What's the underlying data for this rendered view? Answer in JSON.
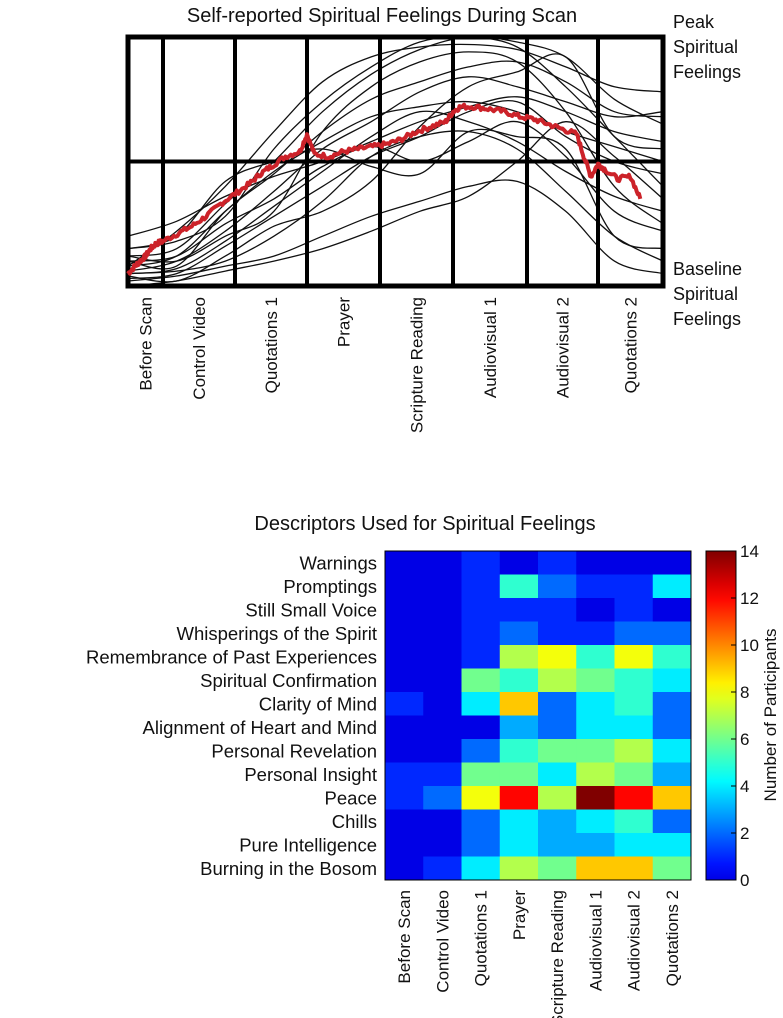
{
  "chart_data": [
    {
      "type": "line",
      "title": "Self-reported Spiritual Feelings During Scan",
      "categories": [
        "Before Scan",
        "Control Video",
        "Quotations 1",
        "Prayer",
        "Scripture Reading",
        "Audiovisual 1",
        "Audiovisual 2",
        "Quotations 2"
      ],
      "y_labels": {
        "top": [
          "Peak",
          "Spiritual",
          "Feelings"
        ],
        "bottom": [
          "Baseline",
          "Spiritual",
          "Feelings"
        ]
      },
      "ylim": [
        0,
        1
      ],
      "grid": true,
      "colors": {
        "mean": "#cc2229",
        "individual": "#111111"
      },
      "mean_series": {
        "x": [
          0,
          0.2,
          0.35,
          0.5,
          0.65,
          0.8,
          1.0,
          1.2,
          1.4,
          1.6,
          1.8,
          2.0,
          2.2,
          2.35,
          2.5,
          2.7,
          2.9,
          3.0,
          3.1,
          3.3,
          3.5,
          3.7,
          3.9,
          4.1,
          4.3,
          4.5,
          4.7,
          4.9,
          5.0,
          5.1,
          5.3,
          5.5,
          5.7,
          5.9,
          6.1,
          6.3,
          6.5,
          6.7,
          6.8,
          6.9,
          7.0,
          7.1,
          7.3,
          7.5,
          7.65
        ],
        "values": [
          0.05,
          0.08,
          0.1,
          0.12,
          0.15,
          0.17,
          0.18,
          0.21,
          0.24,
          0.28,
          0.33,
          0.37,
          0.41,
          0.45,
          0.48,
          0.52,
          0.54,
          0.61,
          0.53,
          0.52,
          0.54,
          0.55,
          0.56,
          0.57,
          0.59,
          0.62,
          0.64,
          0.66,
          0.7,
          0.72,
          0.72,
          0.71,
          0.7,
          0.68,
          0.67,
          0.65,
          0.63,
          0.61,
          0.52,
          0.44,
          0.49,
          0.47,
          0.43,
          0.44,
          0.35
        ]
      },
      "individual_series": [
        [
          0.15,
          0.2,
          0.42,
          0.5,
          0.55,
          0.48,
          0.45,
          0.62,
          0.6,
          0.55,
          0.2,
          0.15
        ],
        [
          0.1,
          0.08,
          0.3,
          0.45,
          0.62,
          0.75,
          0.82,
          0.88,
          0.9,
          0.82,
          0.7,
          0.68
        ],
        [
          0.05,
          0.06,
          0.1,
          0.2,
          0.34,
          0.52,
          0.6,
          0.62,
          0.55,
          0.38,
          0.2,
          0.1
        ],
        [
          0.12,
          0.15,
          0.33,
          0.5,
          0.7,
          0.85,
          0.95,
          1.0,
          0.98,
          0.92,
          0.75,
          0.65
        ],
        [
          0.08,
          0.22,
          0.4,
          0.62,
          0.82,
          0.92,
          0.96,
          0.97,
          0.95,
          0.88,
          0.8,
          0.78
        ],
        [
          0.02,
          0.04,
          0.08,
          0.12,
          0.2,
          0.28,
          0.34,
          0.4,
          0.42,
          0.3,
          0.1,
          0.05
        ],
        [
          0.06,
          0.1,
          0.22,
          0.38,
          0.55,
          0.66,
          0.78,
          0.84,
          0.8,
          0.74,
          0.68,
          0.7
        ],
        [
          0.2,
          0.26,
          0.36,
          0.44,
          0.5,
          0.58,
          0.66,
          0.72,
          0.76,
          0.7,
          0.62,
          0.58
        ],
        [
          0.03,
          0.05,
          0.16,
          0.28,
          0.4,
          0.52,
          0.6,
          0.7,
          0.74,
          0.6,
          0.5,
          0.45
        ],
        [
          0.1,
          0.12,
          0.25,
          0.35,
          0.48,
          0.56,
          0.5,
          0.58,
          0.66,
          0.52,
          0.3,
          0.22
        ],
        [
          0.04,
          0.02,
          0.12,
          0.24,
          0.3,
          0.42,
          0.64,
          0.8,
          0.86,
          0.92,
          0.6,
          0.55
        ],
        [
          0.15,
          0.18,
          0.28,
          0.55,
          0.74,
          0.88,
          0.98,
          1.0,
          0.96,
          0.8,
          0.6,
          0.4
        ],
        [
          0.0,
          0.02,
          0.06,
          0.1,
          0.15,
          0.22,
          0.3,
          0.36,
          0.5,
          0.66,
          0.52,
          0.35
        ],
        [
          0.08,
          0.12,
          0.3,
          0.46,
          0.58,
          0.68,
          0.72,
          0.74,
          0.7,
          0.62,
          0.56,
          0.5
        ],
        [
          0.05,
          0.07,
          0.18,
          0.32,
          0.46,
          0.6,
          0.7,
          0.66,
          0.58,
          0.46,
          0.36,
          0.3
        ],
        [
          0.12,
          0.1,
          0.2,
          0.3,
          0.62,
          0.8,
          0.9,
          0.94,
          0.9,
          0.7,
          0.4,
          0.25
        ]
      ]
    },
    {
      "type": "heatmap",
      "title": "Descriptors Used for Spiritual Feelings",
      "rows": [
        "Warnings",
        "Promptings",
        "Still Small Voice",
        "Whisperings of the Spirit",
        "Remembrance of Past Experiences",
        "Spiritual Confirmation",
        "Clarity of Mind",
        "Alignment of Heart and Mind",
        "Personal Revelation",
        "Personal Insight",
        "Peace",
        "Chills",
        "Pure Intelligence",
        "Burning in the Bosom"
      ],
      "columns": [
        "Before Scan",
        "Control Video",
        "Quotations 1",
        "Prayer",
        "Scripture Reading",
        "Audiovisual 1",
        "Audiovisual 2",
        "Quotations 2"
      ],
      "values": [
        [
          0,
          0,
          1,
          0,
          1,
          0,
          0,
          0
        ],
        [
          0,
          0,
          1,
          5,
          2,
          1,
          1,
          4
        ],
        [
          0,
          0,
          1,
          1,
          1,
          0,
          1,
          0
        ],
        [
          0,
          0,
          1,
          2,
          1,
          1,
          2,
          2
        ],
        [
          0,
          0,
          1,
          7,
          8,
          5,
          8,
          5
        ],
        [
          0,
          0,
          6,
          5,
          7,
          6,
          5,
          4
        ],
        [
          1,
          0,
          4,
          9,
          2,
          4,
          5,
          2
        ],
        [
          0,
          0,
          0,
          3,
          2,
          4,
          4,
          2
        ],
        [
          0,
          0,
          2,
          5,
          6,
          6,
          7,
          4
        ],
        [
          1,
          1,
          6,
          6,
          4,
          7,
          6,
          3
        ],
        [
          1,
          2,
          8,
          12,
          7,
          14,
          12,
          9
        ],
        [
          0,
          0,
          2,
          4,
          3,
          4,
          5,
          2
        ],
        [
          0,
          0,
          2,
          4,
          3,
          3,
          4,
          4
        ],
        [
          0,
          1,
          4,
          7,
          6,
          9,
          9,
          6
        ]
      ],
      "colorbar": {
        "label": "Number of Participants",
        "min": 0,
        "max": 14,
        "ticks": [
          0,
          2,
          4,
          6,
          8,
          10,
          12,
          14
        ]
      }
    }
  ]
}
